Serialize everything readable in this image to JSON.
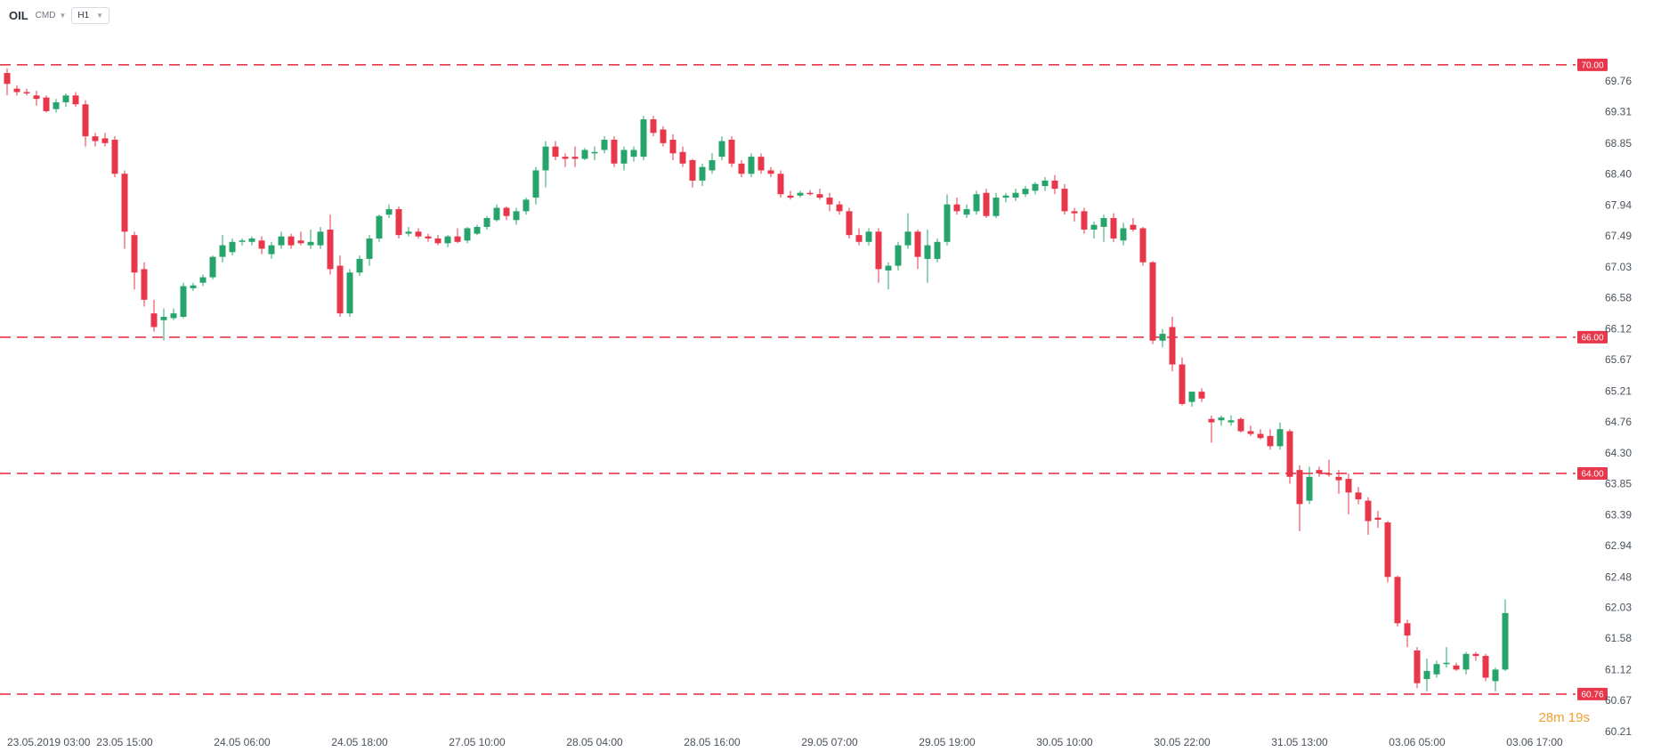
{
  "toolbar": {
    "symbol": "OIL",
    "group": "CMD",
    "timeframe": "H1",
    "chevron_icon": "chevron-down-icon"
  },
  "countdown": "28m 19s",
  "colors": {
    "up": "#26a46b",
    "down": "#e8364a",
    "level_line": "#e8364a",
    "axis_text": "#4a525c",
    "countdown": "#f0a030"
  },
  "chart_data": {
    "type": "candlestick",
    "symbol": "OIL",
    "interval": "H1",
    "ylim": [
      60.21,
      70.22
    ],
    "y_ticks": [
      "69.76",
      "69.31",
      "68.85",
      "68.40",
      "67.94",
      "67.49",
      "67.03",
      "66.58",
      "66.12",
      "65.67",
      "65.21",
      "64.76",
      "64.30",
      "63.85",
      "63.39",
      "62.94",
      "62.48",
      "62.03",
      "61.58",
      "61.12",
      "60.67",
      "60.21"
    ],
    "x_ticks": [
      "23.05.2019  03:00",
      "23.05  15:00",
      "24.05  06:00",
      "24.05  18:00",
      "27.05  10:00",
      "28.05  04:00",
      "28.05  16:00",
      "29.05  07:00",
      "29.05  19:00",
      "30.05  10:00",
      "30.05  22:00",
      "31.05  13:00",
      "03.06  05:00",
      "03.06  17:00"
    ],
    "x_tick_candle_index": [
      0,
      12,
      24,
      36,
      48,
      60,
      72,
      84,
      96,
      108,
      120,
      132,
      144,
      156
    ],
    "levels": [
      {
        "label": "70.00",
        "value": 70.0
      },
      {
        "label": "66.00",
        "value": 66.0
      },
      {
        "label": "64.00",
        "value": 64.0
      },
      {
        "label": "60.76",
        "value": 60.76
      }
    ],
    "candles": [
      [
        69.88,
        69.95,
        69.55,
        69.72
      ],
      [
        69.65,
        69.7,
        69.55,
        69.6
      ],
      [
        69.6,
        69.65,
        69.55,
        69.58
      ],
      [
        69.55,
        69.62,
        69.4,
        69.5
      ],
      [
        69.52,
        69.55,
        69.3,
        69.32
      ],
      [
        69.35,
        69.5,
        69.3,
        69.45
      ],
      [
        69.45,
        69.58,
        69.38,
        69.55
      ],
      [
        69.55,
        69.6,
        69.38,
        69.42
      ],
      [
        69.42,
        69.48,
        68.8,
        68.95
      ],
      [
        68.95,
        69.0,
        68.8,
        68.88
      ],
      [
        68.92,
        69.0,
        68.8,
        68.85
      ],
      [
        68.9,
        68.95,
        68.35,
        68.4
      ],
      [
        68.4,
        68.45,
        67.3,
        67.55
      ],
      [
        67.5,
        67.55,
        66.7,
        66.95
      ],
      [
        67.0,
        67.1,
        66.45,
        66.55
      ],
      [
        66.35,
        66.55,
        66.08,
        66.15
      ],
      [
        66.25,
        66.42,
        65.95,
        66.3
      ],
      [
        66.28,
        66.42,
        66.25,
        66.35
      ],
      [
        66.3,
        66.8,
        66.28,
        66.75
      ],
      [
        66.72,
        66.8,
        66.68,
        66.76
      ],
      [
        66.8,
        66.92,
        66.75,
        66.88
      ],
      [
        66.88,
        67.2,
        66.85,
        67.18
      ],
      [
        67.18,
        67.5,
        67.1,
        67.35
      ],
      [
        67.25,
        67.45,
        67.2,
        67.4
      ],
      [
        67.4,
        67.45,
        67.35,
        67.42
      ],
      [
        67.4,
        67.48,
        67.35,
        67.45
      ],
      [
        67.42,
        67.48,
        67.22,
        67.3
      ],
      [
        67.22,
        67.4,
        67.15,
        67.35
      ],
      [
        67.35,
        67.55,
        67.3,
        67.48
      ],
      [
        67.48,
        67.52,
        67.3,
        67.35
      ],
      [
        67.42,
        67.55,
        67.35,
        67.38
      ],
      [
        67.35,
        67.58,
        67.3,
        67.4
      ],
      [
        67.35,
        67.62,
        67.3,
        67.55
      ],
      [
        67.58,
        67.8,
        66.92,
        67.0
      ],
      [
        67.05,
        67.2,
        66.3,
        66.35
      ],
      [
        66.35,
        67.0,
        66.3,
        66.95
      ],
      [
        66.95,
        67.2,
        66.9,
        67.15
      ],
      [
        67.15,
        67.5,
        67.05,
        67.45
      ],
      [
        67.45,
        67.8,
        67.4,
        67.78
      ],
      [
        67.8,
        67.95,
        67.75,
        67.88
      ],
      [
        67.88,
        67.92,
        67.45,
        67.5
      ],
      [
        67.52,
        67.62,
        67.48,
        67.55
      ],
      [
        67.55,
        67.6,
        67.45,
        67.48
      ],
      [
        67.48,
        67.52,
        67.4,
        67.45
      ],
      [
        67.45,
        67.5,
        67.35,
        67.38
      ],
      [
        67.38,
        67.5,
        67.32,
        67.48
      ],
      [
        67.48,
        67.6,
        67.38,
        67.4
      ],
      [
        67.42,
        67.62,
        67.38,
        67.6
      ],
      [
        67.52,
        67.65,
        67.5,
        67.62
      ],
      [
        67.62,
        67.78,
        67.58,
        67.75
      ],
      [
        67.72,
        67.95,
        67.7,
        67.9
      ],
      [
        67.9,
        67.92,
        67.72,
        67.78
      ],
      [
        67.72,
        67.9,
        67.65,
        67.85
      ],
      [
        67.85,
        68.05,
        67.8,
        68.02
      ],
      [
        68.05,
        68.5,
        67.95,
        68.45
      ],
      [
        68.45,
        68.88,
        68.2,
        68.8
      ],
      [
        68.8,
        68.88,
        68.6,
        68.65
      ],
      [
        68.65,
        68.7,
        68.5,
        68.62
      ],
      [
        68.65,
        68.8,
        68.5,
        68.62
      ],
      [
        68.62,
        68.78,
        68.6,
        68.75
      ],
      [
        68.7,
        68.8,
        68.6,
        68.72
      ],
      [
        68.75,
        68.95,
        68.7,
        68.9
      ],
      [
        68.9,
        68.95,
        68.5,
        68.55
      ],
      [
        68.55,
        68.8,
        68.45,
        68.75
      ],
      [
        68.65,
        68.8,
        68.58,
        68.75
      ],
      [
        68.65,
        69.25,
        68.6,
        69.2
      ],
      [
        69.2,
        69.25,
        68.95,
        69.0
      ],
      [
        69.05,
        69.1,
        68.8,
        68.85
      ],
      [
        68.9,
        68.98,
        68.6,
        68.7
      ],
      [
        68.72,
        68.8,
        68.5,
        68.55
      ],
      [
        68.6,
        68.62,
        68.2,
        68.3
      ],
      [
        68.3,
        68.55,
        68.22,
        68.5
      ],
      [
        68.45,
        68.7,
        68.4,
        68.6
      ],
      [
        68.65,
        68.95,
        68.6,
        68.88
      ],
      [
        68.9,
        68.95,
        68.5,
        68.55
      ],
      [
        68.55,
        68.6,
        68.35,
        68.4
      ],
      [
        68.4,
        68.7,
        68.35,
        68.65
      ],
      [
        68.65,
        68.7,
        68.4,
        68.45
      ],
      [
        68.45,
        68.5,
        68.35,
        68.4
      ],
      [
        68.4,
        68.45,
        68.05,
        68.1
      ],
      [
        68.08,
        68.15,
        68.02,
        68.05
      ],
      [
        68.08,
        68.15,
        68.05,
        68.12
      ],
      [
        68.12,
        68.16,
        68.08,
        68.1
      ],
      [
        68.1,
        68.18,
        68.02,
        68.05
      ],
      [
        68.05,
        68.12,
        67.85,
        67.95
      ],
      [
        67.95,
        68.0,
        67.8,
        67.85
      ],
      [
        67.85,
        67.9,
        67.45,
        67.5
      ],
      [
        67.5,
        67.6,
        67.35,
        67.4
      ],
      [
        67.4,
        67.6,
        67.35,
        67.55
      ],
      [
        67.55,
        67.6,
        66.8,
        67.0
      ],
      [
        66.98,
        67.1,
        66.7,
        67.05
      ],
      [
        67.05,
        67.4,
        66.98,
        67.35
      ],
      [
        67.35,
        67.82,
        67.3,
        67.55
      ],
      [
        67.55,
        67.58,
        67.0,
        67.18
      ],
      [
        67.15,
        67.58,
        66.8,
        67.35
      ],
      [
        67.15,
        67.45,
        67.1,
        67.4
      ],
      [
        67.4,
        68.1,
        67.35,
        67.95
      ],
      [
        67.95,
        68.05,
        67.8,
        67.85
      ],
      [
        67.8,
        67.95,
        67.75,
        67.88
      ],
      [
        67.85,
        68.15,
        67.8,
        68.1
      ],
      [
        68.12,
        68.18,
        67.75,
        67.78
      ],
      [
        67.78,
        68.12,
        67.75,
        68.05
      ],
      [
        68.05,
        68.12,
        67.98,
        68.08
      ],
      [
        68.05,
        68.18,
        68.0,
        68.12
      ],
      [
        68.1,
        68.22,
        68.06,
        68.18
      ],
      [
        68.15,
        68.28,
        68.1,
        68.25
      ],
      [
        68.22,
        68.35,
        68.15,
        68.3
      ],
      [
        68.3,
        68.38,
        68.1,
        68.18
      ],
      [
        68.18,
        68.25,
        67.8,
        67.85
      ],
      [
        67.85,
        67.9,
        67.7,
        67.82
      ],
      [
        67.85,
        67.9,
        67.52,
        67.58
      ],
      [
        67.58,
        67.7,
        67.45,
        67.65
      ],
      [
        67.62,
        67.8,
        67.4,
        67.75
      ],
      [
        67.75,
        67.82,
        67.4,
        67.45
      ],
      [
        67.42,
        67.68,
        67.35,
        67.6
      ],
      [
        67.65,
        67.75,
        67.55,
        67.58
      ],
      [
        67.6,
        67.62,
        67.05,
        67.1
      ],
      [
        67.1,
        67.12,
        65.9,
        65.95
      ],
      [
        65.95,
        66.12,
        65.85,
        66.05
      ],
      [
        66.15,
        66.3,
        65.5,
        65.6
      ],
      [
        65.6,
        65.7,
        65.0,
        65.02
      ],
      [
        65.05,
        65.2,
        64.98,
        65.2
      ],
      [
        65.2,
        65.25,
        65.05,
        65.1
      ],
      [
        64.8,
        64.85,
        64.45,
        64.75
      ],
      [
        64.78,
        64.85,
        64.7,
        64.82
      ],
      [
        64.75,
        64.85,
        64.7,
        64.78
      ],
      [
        64.8,
        64.82,
        64.6,
        64.62
      ],
      [
        64.62,
        64.7,
        64.55,
        64.58
      ],
      [
        64.58,
        64.65,
        64.5,
        64.52
      ],
      [
        64.55,
        64.65,
        64.35,
        64.4
      ],
      [
        64.4,
        64.75,
        64.35,
        64.65
      ],
      [
        64.62,
        64.65,
        63.85,
        63.95
      ],
      [
        64.05,
        64.12,
        63.15,
        63.55
      ],
      [
        63.6,
        64.1,
        63.55,
        63.95
      ],
      [
        64.05,
        64.1,
        63.95,
        64.0
      ],
      [
        64.0,
        64.2,
        63.95,
        63.98
      ],
      [
        63.95,
        64.05,
        63.7,
        63.9
      ],
      [
        63.92,
        64.0,
        63.4,
        63.72
      ],
      [
        63.72,
        63.8,
        63.55,
        63.62
      ],
      [
        63.6,
        63.65,
        63.1,
        63.3
      ],
      [
        63.35,
        63.45,
        63.2,
        63.32
      ],
      [
        63.28,
        63.3,
        62.4,
        62.48
      ],
      [
        62.48,
        62.5,
        61.75,
        61.8
      ],
      [
        61.8,
        61.85,
        61.45,
        61.62
      ],
      [
        61.4,
        61.45,
        60.85,
        60.92
      ],
      [
        60.98,
        61.28,
        60.8,
        61.1
      ],
      [
        61.05,
        61.25,
        61.0,
        61.2
      ],
      [
        61.2,
        61.45,
        61.15,
        61.22
      ],
      [
        61.18,
        61.22,
        61.1,
        61.12
      ],
      [
        61.12,
        61.38,
        61.05,
        61.35
      ],
      [
        61.35,
        61.38,
        61.25,
        61.32
      ],
      [
        61.32,
        61.35,
        60.95,
        61.0
      ],
      [
        60.95,
        61.15,
        60.8,
        61.12
      ],
      [
        61.12,
        62.15,
        61.1,
        61.95
      ]
    ]
  }
}
